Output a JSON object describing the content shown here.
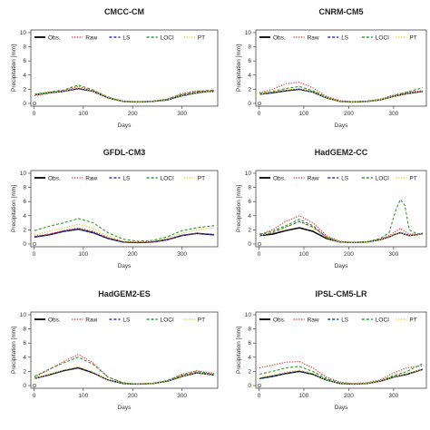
{
  "chart_data": [
    {
      "type": "line",
      "title": "CMCC-CM",
      "xlabel": "Days",
      "ylabel": "Precipitation [mm]",
      "xlim": [
        1,
        365
      ],
      "ylim": [
        0,
        10
      ],
      "xticks": [
        0,
        100,
        200,
        300
      ],
      "yticks": [
        0,
        2,
        4,
        6,
        8,
        10
      ],
      "legend_position": "top",
      "x": [
        1,
        30,
        60,
        90,
        120,
        150,
        180,
        210,
        240,
        270,
        300,
        330,
        365
      ],
      "series": [
        {
          "name": "Obs.",
          "color": "#000000",
          "dash": "solid",
          "values": [
            1.2,
            1.5,
            1.7,
            2.1,
            1.7,
            0.8,
            0.3,
            0.2,
            0.3,
            0.5,
            1.1,
            1.5,
            1.8
          ]
        },
        {
          "name": "Raw",
          "color": "#e8332f",
          "dash": "dotted",
          "values": [
            1.1,
            1.4,
            1.8,
            2.4,
            1.8,
            0.9,
            0.3,
            0.2,
            0.3,
            0.6,
            1.4,
            1.8,
            1.6
          ]
        },
        {
          "name": "LS",
          "color": "#2a35c9",
          "dash": "dashed",
          "values": [
            1.2,
            1.5,
            1.7,
            2.1,
            1.7,
            0.8,
            0.3,
            0.2,
            0.3,
            0.5,
            1.1,
            1.5,
            1.8
          ]
        },
        {
          "name": "LOCI",
          "color": "#2f9a2f",
          "dash": "dashed",
          "values": [
            1.3,
            1.6,
            1.9,
            2.6,
            1.9,
            0.9,
            0.3,
            0.2,
            0.3,
            0.6,
            1.3,
            1.7,
            1.9
          ]
        },
        {
          "name": "PT",
          "color": "#e6d22a",
          "dash": "dotted",
          "values": [
            1.2,
            1.5,
            1.7,
            2.2,
            1.7,
            0.8,
            0.3,
            0.2,
            0.3,
            0.5,
            1.1,
            1.5,
            1.8
          ]
        }
      ]
    },
    {
      "type": "line",
      "title": "CNRM-CM5",
      "xlabel": "Days",
      "ylabel": "Precipitation [mm]",
      "xlim": [
        1,
        365
      ],
      "ylim": [
        0,
        10
      ],
      "xticks": [
        0,
        100,
        200,
        300
      ],
      "yticks": [
        0,
        2,
        4,
        6,
        8,
        10
      ],
      "legend_position": "top",
      "x": [
        1,
        30,
        60,
        90,
        120,
        150,
        180,
        210,
        240,
        270,
        300,
        330,
        365
      ],
      "series": [
        {
          "name": "Obs.",
          "color": "#000000",
          "dash": "solid",
          "values": [
            1.3,
            1.5,
            1.8,
            2.0,
            1.6,
            0.8,
            0.3,
            0.2,
            0.3,
            0.5,
            1.0,
            1.4,
            1.7
          ]
        },
        {
          "name": "Raw",
          "color": "#e8332f",
          "dash": "dotted",
          "values": [
            1.5,
            2.0,
            2.8,
            3.0,
            2.2,
            1.0,
            0.4,
            0.2,
            0.3,
            0.6,
            1.2,
            1.6,
            1.8
          ]
        },
        {
          "name": "LS",
          "color": "#2a35c9",
          "dash": "dashed",
          "values": [
            1.3,
            1.5,
            1.8,
            2.0,
            1.6,
            0.8,
            0.3,
            0.2,
            0.3,
            0.5,
            1.0,
            1.4,
            1.7
          ]
        },
        {
          "name": "LOCI",
          "color": "#2f9a2f",
          "dash": "dashed",
          "values": [
            1.4,
            1.7,
            2.1,
            2.4,
            1.8,
            0.9,
            0.3,
            0.2,
            0.3,
            0.5,
            1.1,
            1.6,
            2.2
          ]
        },
        {
          "name": "PT",
          "color": "#e6d22a",
          "dash": "dotted",
          "values": [
            1.3,
            1.6,
            1.9,
            2.1,
            1.6,
            0.8,
            0.3,
            0.2,
            0.3,
            0.5,
            1.0,
            1.4,
            1.7
          ]
        }
      ]
    },
    {
      "type": "line",
      "title": "GFDL-CM3",
      "xlabel": "Days",
      "ylabel": "Precipitation [mm]",
      "xlim": [
        1,
        365
      ],
      "ylim": [
        0,
        10
      ],
      "xticks": [
        0,
        100,
        200,
        300
      ],
      "yticks": [
        0,
        2,
        4,
        6,
        8,
        10
      ],
      "legend_position": "top",
      "x": [
        1,
        30,
        60,
        90,
        120,
        150,
        180,
        210,
        240,
        270,
        300,
        330,
        365
      ],
      "series": [
        {
          "name": "Obs.",
          "color": "#000000",
          "dash": "solid",
          "values": [
            1.0,
            1.3,
            1.8,
            2.1,
            1.6,
            0.8,
            0.3,
            0.2,
            0.3,
            0.6,
            1.2,
            1.5,
            1.3
          ]
        },
        {
          "name": "Raw",
          "color": "#e8332f",
          "dash": "dotted",
          "values": [
            1.1,
            1.4,
            1.9,
            2.3,
            1.8,
            0.9,
            0.3,
            0.2,
            0.3,
            0.6,
            1.2,
            1.5,
            1.4
          ]
        },
        {
          "name": "LS",
          "color": "#2a35c9",
          "dash": "dashed",
          "values": [
            1.0,
            1.3,
            1.8,
            2.1,
            1.6,
            0.8,
            0.3,
            0.2,
            0.3,
            0.6,
            1.2,
            1.5,
            1.3
          ]
        },
        {
          "name": "LOCI",
          "color": "#2f9a2f",
          "dash": "dashed",
          "values": [
            1.9,
            2.5,
            3.0,
            3.6,
            3.0,
            1.6,
            0.7,
            0.4,
            0.5,
            1.0,
            1.9,
            2.3,
            2.6
          ]
        },
        {
          "name": "PT",
          "color": "#e6d22a",
          "dash": "dotted",
          "values": [
            1.3,
            1.8,
            2.3,
            2.8,
            2.2,
            1.1,
            0.4,
            0.3,
            0.4,
            0.8,
            1.5,
            2.0,
            2.3
          ]
        }
      ]
    },
    {
      "type": "line",
      "title": "HadGEM2-CC",
      "xlabel": "Days",
      "ylabel": "Precipitation [mm]",
      "xlim": [
        1,
        365
      ],
      "ylim": [
        0,
        10
      ],
      "xticks": [
        0,
        100,
        200,
        300
      ],
      "yticks": [
        0,
        2,
        4,
        6,
        8,
        10
      ],
      "legend_position": "top",
      "x": [
        1,
        30,
        60,
        90,
        120,
        150,
        180,
        210,
        240,
        270,
        290,
        305,
        315,
        325,
        335,
        350,
        365
      ],
      "series": [
        {
          "name": "Obs.",
          "color": "#000000",
          "dash": "solid",
          "values": [
            1.2,
            1.4,
            1.9,
            2.3,
            1.8,
            0.8,
            0.3,
            0.2,
            0.3,
            0.6,
            1.0,
            1.4,
            1.6,
            1.4,
            1.2,
            1.3,
            1.5
          ]
        },
        {
          "name": "Raw",
          "color": "#e8332f",
          "dash": "dotted",
          "values": [
            1.3,
            2.0,
            3.2,
            4.0,
            3.0,
            1.2,
            0.4,
            0.2,
            0.3,
            0.7,
            1.2,
            1.8,
            2.2,
            1.8,
            1.4,
            1.4,
            1.4
          ]
        },
        {
          "name": "LS",
          "color": "#2a35c9",
          "dash": "dashed",
          "values": [
            1.2,
            1.6,
            2.4,
            3.2,
            2.4,
            1.0,
            0.3,
            0.2,
            0.3,
            0.6,
            1.0,
            1.4,
            1.6,
            1.4,
            1.2,
            1.3,
            1.5
          ]
        },
        {
          "name": "LOCI",
          "color": "#2f9a2f",
          "dash": "dashed",
          "values": [
            1.4,
            1.8,
            2.6,
            3.5,
            2.6,
            1.0,
            0.3,
            0.2,
            0.3,
            0.8,
            1.6,
            4.8,
            6.3,
            5.5,
            2.0,
            1.5,
            1.4
          ]
        },
        {
          "name": "PT",
          "color": "#e6d22a",
          "dash": "dotted",
          "values": [
            1.2,
            1.6,
            2.4,
            3.1,
            2.3,
            0.9,
            0.3,
            0.2,
            0.3,
            0.6,
            1.0,
            1.4,
            1.6,
            1.4,
            1.2,
            1.3,
            1.5
          ]
        }
      ]
    },
    {
      "type": "line",
      "title": "HadGEM2-ES",
      "xlabel": "Days",
      "ylabel": "Precipitation [mm]",
      "xlim": [
        1,
        365
      ],
      "ylim": [
        0,
        10
      ],
      "xticks": [
        0,
        100,
        200,
        300
      ],
      "yticks": [
        0,
        2,
        4,
        6,
        8,
        10
      ],
      "legend_position": "top",
      "x": [
        1,
        30,
        60,
        90,
        120,
        150,
        180,
        210,
        240,
        270,
        300,
        330,
        365
      ],
      "series": [
        {
          "name": "Obs.",
          "color": "#000000",
          "dash": "solid",
          "values": [
            1.0,
            1.5,
            2.1,
            2.5,
            1.8,
            0.8,
            0.3,
            0.2,
            0.3,
            0.6,
            1.3,
            1.8,
            1.5
          ]
        },
        {
          "name": "Raw",
          "color": "#e8332f",
          "dash": "dotted",
          "values": [
            1.2,
            2.2,
            3.4,
            4.4,
            3.2,
            1.2,
            0.4,
            0.2,
            0.3,
            0.7,
            1.6,
            2.1,
            1.7
          ]
        },
        {
          "name": "LS",
          "color": "#2a35c9",
          "dash": "dashed",
          "values": [
            1.0,
            1.5,
            2.1,
            2.5,
            1.8,
            0.8,
            0.3,
            0.2,
            0.3,
            0.6,
            1.3,
            1.8,
            1.5
          ]
        },
        {
          "name": "LOCI",
          "color": "#2f9a2f",
          "dash": "dashed",
          "values": [
            1.3,
            2.3,
            3.2,
            4.0,
            3.0,
            1.2,
            0.4,
            0.2,
            0.3,
            0.7,
            1.5,
            2.0,
            1.6
          ]
        },
        {
          "name": "PT",
          "color": "#e6d22a",
          "dash": "dotted",
          "values": [
            1.0,
            1.6,
            2.2,
            2.7,
            1.9,
            0.8,
            0.3,
            0.2,
            0.3,
            0.6,
            1.3,
            1.8,
            1.5
          ]
        }
      ]
    },
    {
      "type": "line",
      "title": "IPSL-CM5-LR",
      "xlabel": "Days",
      "ylabel": "Precipitation [mm]",
      "xlim": [
        1,
        365
      ],
      "ylim": [
        0,
        10
      ],
      "xticks": [
        0,
        100,
        200,
        300
      ],
      "yticks": [
        0,
        2,
        4,
        6,
        8,
        10
      ],
      "legend_position": "top",
      "x": [
        1,
        30,
        60,
        90,
        120,
        150,
        180,
        210,
        240,
        270,
        300,
        330,
        365
      ],
      "series": [
        {
          "name": "Obs.",
          "color": "#000000",
          "dash": "solid",
          "values": [
            1.0,
            1.3,
            1.7,
            2.0,
            1.6,
            0.8,
            0.3,
            0.2,
            0.3,
            0.6,
            1.2,
            1.6,
            2.3
          ]
        },
        {
          "name": "Raw",
          "color": "#e8332f",
          "dash": "dotted",
          "values": [
            2.5,
            2.9,
            3.3,
            3.4,
            2.5,
            1.2,
            0.5,
            0.3,
            0.4,
            0.8,
            1.8,
            2.5,
            2.8
          ]
        },
        {
          "name": "LS",
          "color": "#2a35c9",
          "dash": "dashed",
          "values": [
            1.0,
            1.3,
            1.7,
            2.0,
            1.6,
            0.8,
            0.3,
            0.2,
            0.3,
            0.6,
            1.2,
            1.6,
            2.3
          ]
        },
        {
          "name": "LOCI",
          "color": "#2f9a2f",
          "dash": "dashed",
          "values": [
            1.6,
            2.0,
            2.5,
            2.7,
            2.0,
            1.0,
            0.4,
            0.2,
            0.3,
            0.7,
            1.4,
            2.0,
            3.1
          ]
        },
        {
          "name": "PT",
          "color": "#e6d22a",
          "dash": "dotted",
          "values": [
            1.1,
            1.5,
            1.9,
            2.2,
            1.7,
            0.8,
            0.3,
            0.2,
            0.3,
            0.6,
            1.2,
            1.7,
            2.3
          ]
        }
      ]
    }
  ]
}
